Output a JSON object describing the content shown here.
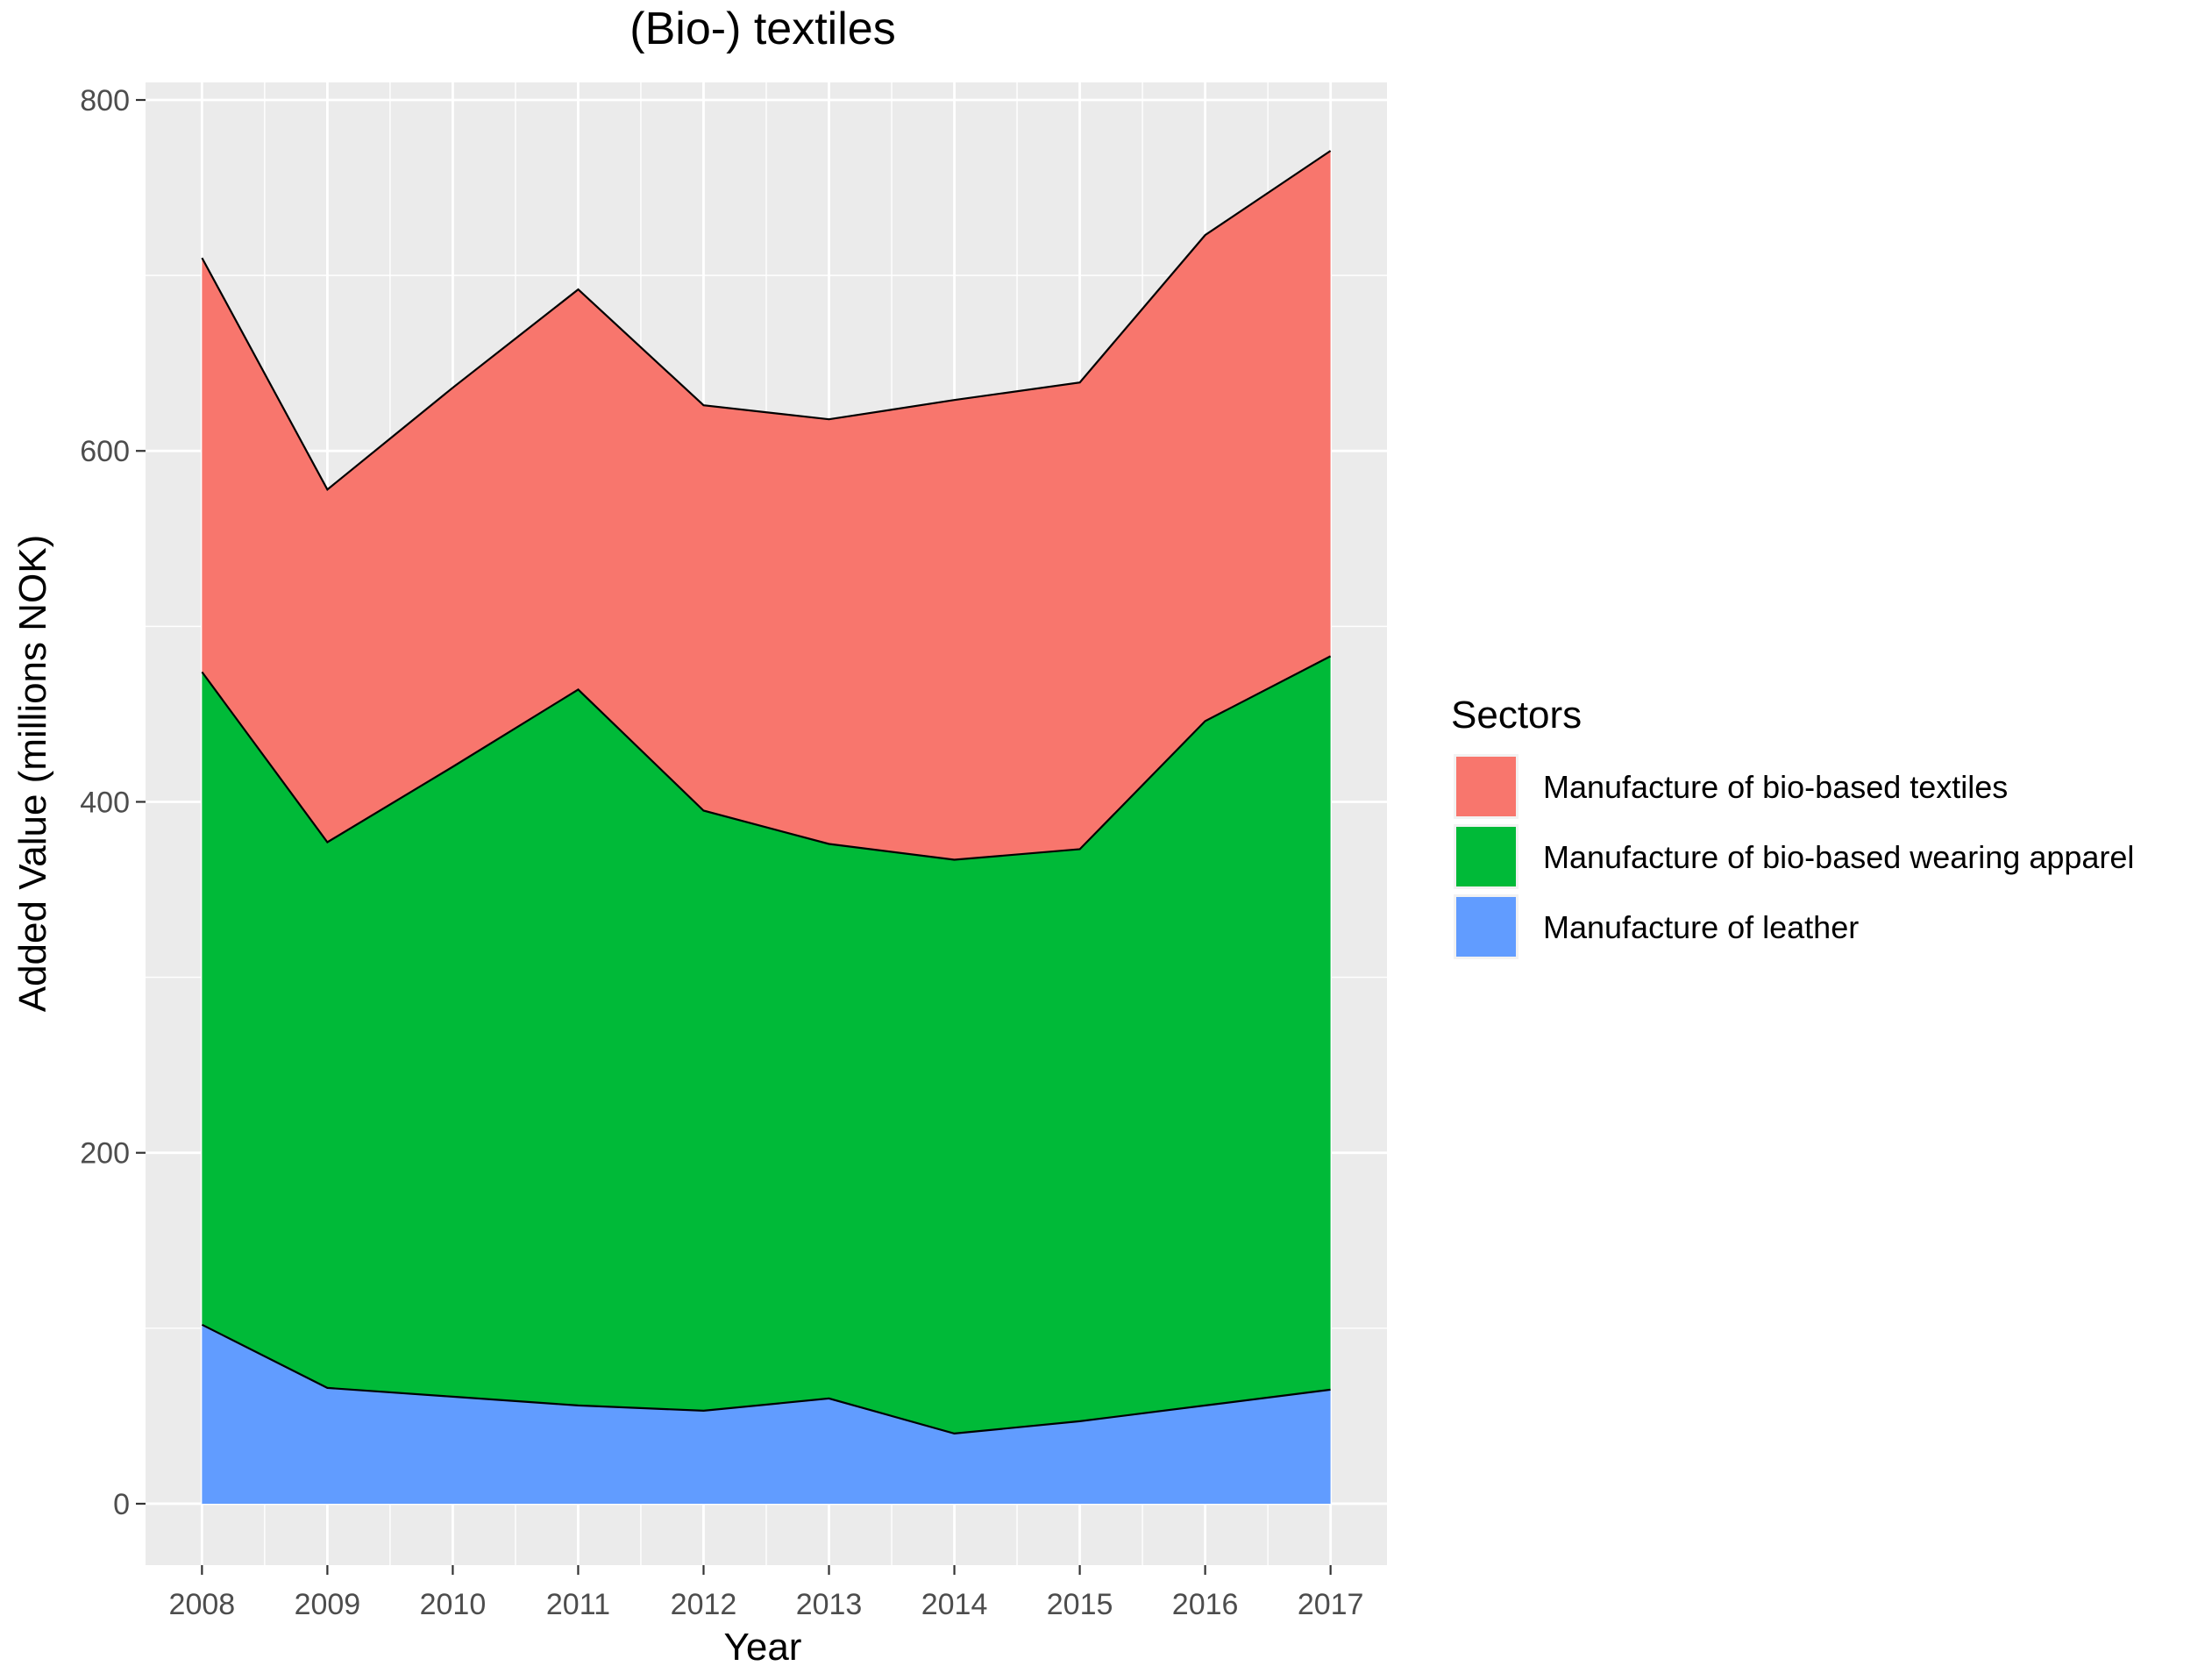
{
  "chart_data": {
    "type": "area",
    "stacked": true,
    "title": "(Bio-) textiles",
    "xlabel": "Year",
    "ylabel": "Added Value (millions NOK)",
    "x": [
      2008,
      2009,
      2010,
      2011,
      2012,
      2013,
      2014,
      2015,
      2016,
      2017
    ],
    "x_tick_labels": [
      "2008",
      "2009",
      "2010",
      "2011",
      "2012",
      "2013",
      "2014",
      "2015",
      "2016",
      "2017"
    ],
    "xlim": [
      2007.55,
      2017.45
    ],
    "ylim": [
      -35,
      810
    ],
    "y_ticks": [
      0,
      200,
      400,
      600,
      800
    ],
    "y_tick_labels": [
      "0",
      "200",
      "400",
      "600",
      "800"
    ],
    "y_minor_ticks": [
      100,
      300,
      500,
      700
    ],
    "grid": true,
    "legend": {
      "title": "Sectors",
      "position": "right",
      "entries": [
        {
          "label": "Manufacture of bio-based textiles",
          "color": "#F8766D"
        },
        {
          "label": "Manufacture of bio-based wearing apparel",
          "color": "#00BA38"
        },
        {
          "label": "Manufacture of leather",
          "color": "#619CFF"
        }
      ]
    },
    "series": [
      {
        "name": "Manufacture of leather",
        "color": "#619CFF",
        "values": [
          102,
          66,
          61,
          56,
          53,
          60,
          40,
          47,
          56,
          65
        ]
      },
      {
        "name": "Manufacture of bio-based wearing apparel",
        "color": "#00BA38",
        "values": [
          372,
          311,
          359,
          408,
          342,
          316,
          327,
          326,
          390,
          418
        ]
      },
      {
        "name": "Manufacture of bio-based textiles",
        "color": "#F8766D",
        "values": [
          236,
          201,
          216,
          228,
          231,
          242,
          262,
          266,
          277,
          288
        ]
      }
    ],
    "panel_background": "#EBEBEB",
    "grid_color": "#FFFFFF"
  }
}
